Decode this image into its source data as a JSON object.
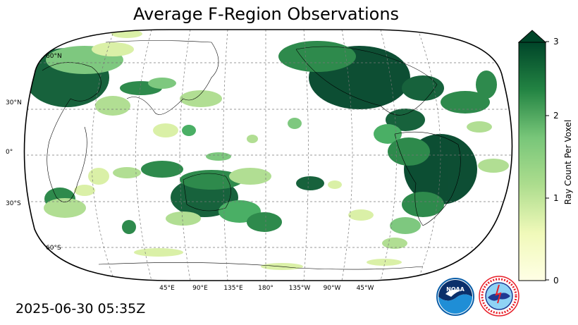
{
  "title": "Average F-Region Observations",
  "timestamp": "2025-06-30 05:35Z",
  "lat_labels": [
    "60°N",
    "30°N",
    "0°",
    "30°S",
    "60°S"
  ],
  "lon_labels": [
    "45°E",
    "90°E",
    "135°E",
    "180°",
    "135°W",
    "90°W",
    "45°W"
  ],
  "colorbar": {
    "label": "Ray Count Per Voxel",
    "ticks": [
      "0",
      "1",
      "2",
      "3"
    ],
    "min": 0,
    "max": 3,
    "extend": "max",
    "color_low": "#ffffe5",
    "color_mid": "#78c679",
    "color_high": "#004529"
  },
  "logos": {
    "noaa_text": "NOAA",
    "nws_text": "NATIONAL WEATHER SERVICE",
    "noaa_color": "#0a5ea8",
    "nws_color": "#e8202a"
  },
  "map": {
    "projection": "Robinson",
    "central_longitude": 180,
    "gridlines": "dashed grey",
    "land_color": "#ffffff",
    "colormap": "YlGn"
  }
}
